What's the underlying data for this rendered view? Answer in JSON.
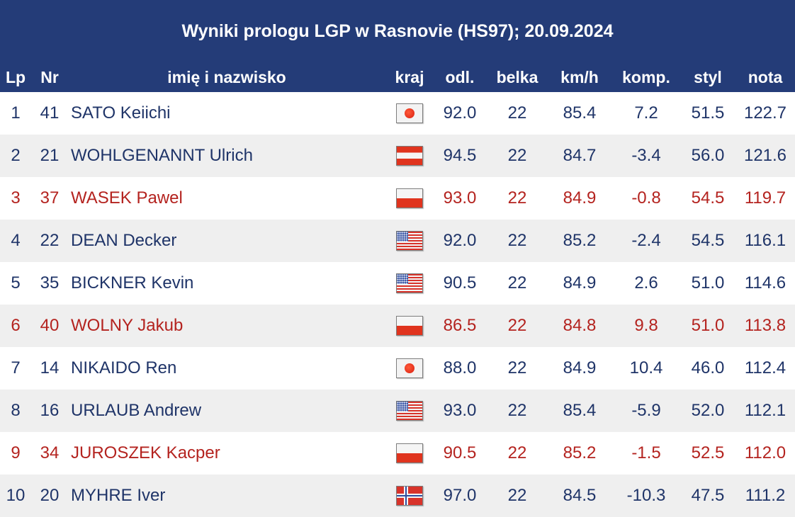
{
  "title": "Wyniki prologu LGP w Rasnovie (HS97); 20.09.2024",
  "colors": {
    "header_bg": "#243c78",
    "normal_text": "#1f3468",
    "highlight_text": "#b4231f",
    "stripe": "#efefef"
  },
  "columns": {
    "lp": "Lp",
    "nr": "Nr",
    "name": "imię i nazwisko",
    "kraj": "kraj",
    "odl": "odl.",
    "belka": "belka",
    "kmh": "km/h",
    "komp": "komp.",
    "styl": "styl",
    "nota": "nota"
  },
  "rows": [
    {
      "lp": "1",
      "nr": "41",
      "name": "SATO Keiichi",
      "flag": "jpn-flag-icon",
      "odl": "92.0",
      "belka": "22",
      "kmh": "85.4",
      "komp": "7.2",
      "styl": "51.5",
      "nota": "122.7",
      "highlight": false
    },
    {
      "lp": "2",
      "nr": "21",
      "name": "WOHLGENANNT Ulrich",
      "flag": "aut-flag-icon",
      "odl": "94.5",
      "belka": "22",
      "kmh": "84.7",
      "komp": "-3.4",
      "styl": "56.0",
      "nota": "121.6",
      "highlight": false
    },
    {
      "lp": "3",
      "nr": "37",
      "name": "WASEK Pawel",
      "flag": "pol-flag-icon",
      "odl": "93.0",
      "belka": "22",
      "kmh": "84.9",
      "komp": "-0.8",
      "styl": "54.5",
      "nota": "119.7",
      "highlight": true
    },
    {
      "lp": "4",
      "nr": "22",
      "name": "DEAN Decker",
      "flag": "usa-flag-icon",
      "odl": "92.0",
      "belka": "22",
      "kmh": "85.2",
      "komp": "-2.4",
      "styl": "54.5",
      "nota": "116.1",
      "highlight": false
    },
    {
      "lp": "5",
      "nr": "35",
      "name": "BICKNER Kevin",
      "flag": "usa-flag-icon",
      "odl": "90.5",
      "belka": "22",
      "kmh": "84.9",
      "komp": "2.6",
      "styl": "51.0",
      "nota": "114.6",
      "highlight": false
    },
    {
      "lp": "6",
      "nr": "40",
      "name": "WOLNY Jakub",
      "flag": "pol-flag-icon",
      "odl": "86.5",
      "belka": "22",
      "kmh": "84.8",
      "komp": "9.8",
      "styl": "51.0",
      "nota": "113.8",
      "highlight": true
    },
    {
      "lp": "7",
      "nr": "14",
      "name": "NIKAIDO Ren",
      "flag": "jpn-flag-icon",
      "odl": "88.0",
      "belka": "22",
      "kmh": "84.9",
      "komp": "10.4",
      "styl": "46.0",
      "nota": "112.4",
      "highlight": false
    },
    {
      "lp": "8",
      "nr": "16",
      "name": "URLAUB Andrew",
      "flag": "usa-flag-icon",
      "odl": "93.0",
      "belka": "22",
      "kmh": "85.4",
      "komp": "-5.9",
      "styl": "52.0",
      "nota": "112.1",
      "highlight": false
    },
    {
      "lp": "9",
      "nr": "34",
      "name": "JUROSZEK Kacper",
      "flag": "pol-flag-icon",
      "odl": "90.5",
      "belka": "22",
      "kmh": "85.2",
      "komp": "-1.5",
      "styl": "52.5",
      "nota": "112.0",
      "highlight": true
    },
    {
      "lp": "10",
      "nr": "20",
      "name": "MYHRE Iver",
      "flag": "nor-flag-icon",
      "odl": "97.0",
      "belka": "22",
      "kmh": "84.5",
      "komp": "-10.3",
      "styl": "47.5",
      "nota": "111.2",
      "highlight": false
    }
  ]
}
